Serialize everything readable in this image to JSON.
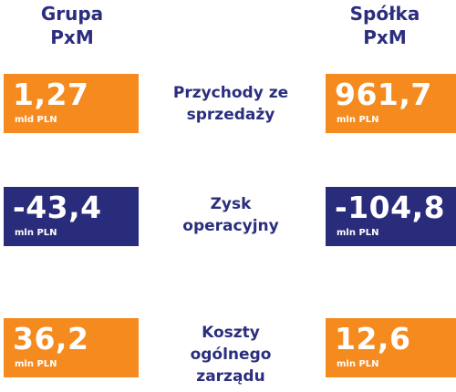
{
  "headers": {
    "left": {
      "line1": "Grupa",
      "line2": "PxM"
    },
    "right": {
      "line1": "Spółka",
      "line2": "PxM"
    }
  },
  "rows": [
    {
      "label_lines": [
        "Przychody ze",
        "sprzedaży"
      ],
      "group": {
        "value": "1,27",
        "unit": "mld PLN"
      },
      "company": {
        "value": "961,7",
        "unit": "mln PLN"
      }
    },
    {
      "label_lines": [
        "Zysk",
        "operacyjny"
      ],
      "group": {
        "value": "-43,4",
        "unit": "mln PLN"
      },
      "company": {
        "value": "-104,8",
        "unit": "mln PLN"
      }
    },
    {
      "label_lines": [
        "Koszty",
        "ogólnego",
        "zarządu"
      ],
      "group": {
        "value": "36,2",
        "unit": "mln PLN"
      },
      "company": {
        "value": "12,6",
        "unit": "mln PLN"
      }
    }
  ],
  "colors": {
    "orange": "#f58a1f",
    "navy": "#292c7a",
    "text_navy": "#2b2e7e"
  }
}
